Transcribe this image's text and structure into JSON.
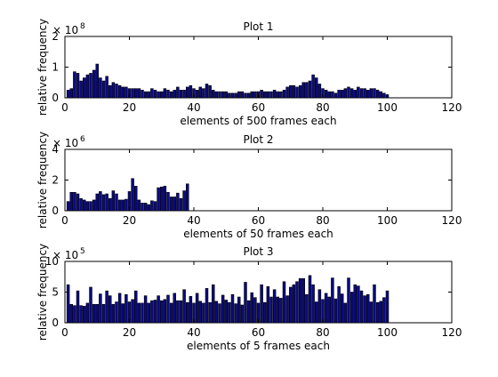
{
  "colors": {
    "bar_fill": "#0a0a82",
    "bar_edge": "#000000",
    "axes": "#000000",
    "background": "#ffffff"
  },
  "chart_data": [
    {
      "type": "bar",
      "title": "Plot 1",
      "xlabel": "elements of 500 frames each",
      "ylabel": "relative frequency",
      "exponent_label": "× 10",
      "exponent": "8",
      "xlim": [
        0,
        120
      ],
      "ylim": [
        0,
        2
      ],
      "xticks": [
        0,
        20,
        40,
        60,
        80,
        100,
        120
      ],
      "yticks": [
        0,
        1,
        2
      ],
      "grid": false,
      "x": [
        1,
        2,
        3,
        4,
        5,
        6,
        7,
        8,
        9,
        10,
        11,
        12,
        13,
        14,
        15,
        16,
        17,
        18,
        19,
        20,
        21,
        22,
        23,
        24,
        25,
        26,
        27,
        28,
        29,
        30,
        31,
        32,
        33,
        34,
        35,
        36,
        37,
        38,
        39,
        40,
        41,
        42,
        43,
        44,
        45,
        46,
        47,
        48,
        49,
        50,
        51,
        52,
        53,
        54,
        55,
        56,
        57,
        58,
        59,
        60,
        61,
        62,
        63,
        64,
        65,
        66,
        67,
        68,
        69,
        70,
        71,
        72,
        73,
        74,
        75,
        76,
        77,
        78,
        79,
        80,
        81,
        82,
        83,
        84,
        85,
        86,
        87,
        88,
        89,
        90,
        91,
        92,
        93,
        94,
        95,
        96,
        97,
        98,
        99,
        100
      ],
      "values": [
        0.25,
        0.3,
        0.85,
        0.8,
        0.55,
        0.65,
        0.75,
        0.8,
        0.9,
        1.1,
        0.65,
        0.55,
        0.7,
        0.4,
        0.5,
        0.45,
        0.4,
        0.35,
        0.35,
        0.3,
        0.3,
        0.3,
        0.3,
        0.25,
        0.2,
        0.2,
        0.3,
        0.25,
        0.2,
        0.2,
        0.3,
        0.25,
        0.2,
        0.25,
        0.35,
        0.25,
        0.25,
        0.35,
        0.4,
        0.3,
        0.25,
        0.35,
        0.3,
        0.45,
        0.4,
        0.25,
        0.2,
        0.2,
        0.2,
        0.2,
        0.15,
        0.15,
        0.15,
        0.2,
        0.2,
        0.15,
        0.15,
        0.2,
        0.2,
        0.2,
        0.25,
        0.2,
        0.2,
        0.2,
        0.25,
        0.2,
        0.2,
        0.25,
        0.35,
        0.4,
        0.4,
        0.35,
        0.4,
        0.5,
        0.5,
        0.55,
        0.75,
        0.65,
        0.45,
        0.3,
        0.25,
        0.2,
        0.2,
        0.15,
        0.25,
        0.25,
        0.3,
        0.35,
        0.3,
        0.25,
        0.35,
        0.3,
        0.3,
        0.25,
        0.3,
        0.3,
        0.25,
        0.2,
        0.15,
        0.1
      ]
    },
    {
      "type": "bar",
      "title": "Plot 2",
      "xlabel": "elements of 50 frames each",
      "ylabel": "relative frequency",
      "exponent_label": "× 10",
      "exponent": "6",
      "xlim": [
        0,
        120
      ],
      "ylim": [
        0,
        4
      ],
      "xticks": [
        0,
        20,
        40,
        60,
        80,
        100,
        120
      ],
      "yticks": [
        0,
        2,
        4
      ],
      "grid": false,
      "x": [
        1,
        2,
        3,
        4,
        5,
        6,
        7,
        8,
        9,
        10,
        11,
        12,
        13,
        14,
        15,
        16,
        17,
        18,
        19,
        20,
        21,
        22,
        23,
        24,
        25,
        26,
        27,
        28,
        29,
        30,
        31,
        32,
        33,
        34,
        35,
        36,
        37,
        38
      ],
      "values": [
        0.6,
        1.2,
        1.2,
        1.1,
        0.8,
        0.7,
        0.6,
        0.6,
        0.7,
        1.1,
        1.25,
        1.05,
        1.1,
        0.8,
        1.3,
        1.1,
        0.7,
        0.7,
        0.75,
        1.25,
        2.1,
        1.6,
        0.7,
        0.5,
        0.5,
        0.4,
        0.65,
        0.6,
        1.5,
        1.55,
        1.6,
        1.2,
        0.9,
        0.9,
        1.15,
        0.8,
        1.3,
        1.75
      ]
    },
    {
      "type": "bar",
      "title": "Plot 3",
      "xlabel": "elements of 5 frames each",
      "ylabel": "relative frequency",
      "exponent_label": "× 10",
      "exponent": "5",
      "xlim": [
        0,
        120
      ],
      "ylim": [
        0,
        10
      ],
      "xticks": [
        0,
        20,
        40,
        60,
        80,
        100,
        120
      ],
      "yticks": [
        0,
        5,
        10
      ],
      "grid": false,
      "x": [
        1,
        2,
        3,
        4,
        5,
        6,
        7,
        8,
        9,
        10,
        11,
        12,
        13,
        14,
        15,
        16,
        17,
        18,
        19,
        20,
        21,
        22,
        23,
        24,
        25,
        26,
        27,
        28,
        29,
        30,
        31,
        32,
        33,
        34,
        35,
        36,
        37,
        38,
        39,
        40,
        41,
        42,
        43,
        44,
        45,
        46,
        47,
        48,
        49,
        50,
        51,
        52,
        53,
        54,
        55,
        56,
        57,
        58,
        59,
        60,
        61,
        62,
        63,
        64,
        65,
        66,
        67,
        68,
        69,
        70,
        71,
        72,
        73,
        74,
        75,
        76,
        77,
        78,
        79,
        80,
        81,
        82,
        83,
        84,
        85,
        86,
        87,
        88,
        89,
        90,
        91,
        92,
        93,
        94,
        95,
        96,
        97,
        98,
        99,
        100
      ],
      "values": [
        6.2,
        3,
        2.8,
        5.2,
        2.8,
        2.7,
        3.2,
        5.8,
        3,
        3,
        4.7,
        3,
        5.2,
        4.4,
        3,
        3.4,
        4.8,
        3.1,
        4.6,
        3.4,
        3.8,
        5.2,
        3.2,
        3.2,
        4.4,
        3.2,
        3.6,
        3.7,
        4.4,
        3.6,
        3.8,
        4.5,
        3.2,
        4.8,
        3.6,
        3.6,
        5.4,
        3.3,
        4.3,
        3.2,
        4.8,
        3.5,
        3.2,
        5.6,
        3.3,
        6.2,
        3.5,
        3.1,
        4.5,
        3.7,
        3.3,
        4.6,
        3.1,
        4.2,
        2.9,
        6.6,
        3.6,
        4.9,
        4.1,
        3.2,
        6.2,
        3.3,
        5.9,
        4.2,
        5.4,
        4.2,
        4,
        6.7,
        4.4,
        5.8,
        6.2,
        6.7,
        7.2,
        7.2,
        4.6,
        7.7,
        6.2,
        3.4,
        5.4,
        3.8,
        4.8,
        4.2,
        7.3,
        3.9,
        5.9,
        4.7,
        3.2,
        7.3,
        5,
        6.2,
        6,
        5.2,
        4.4,
        4.6,
        3.4,
        6.2,
        3.3,
        3.5,
        4.1,
        5.2
      ]
    }
  ]
}
